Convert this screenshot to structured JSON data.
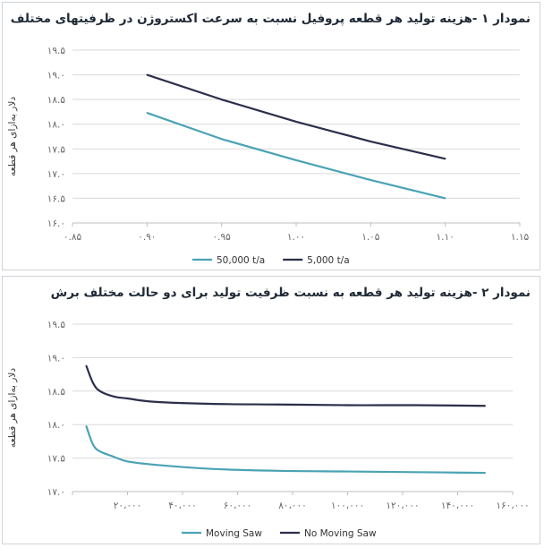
{
  "charts": [
    {
      "title": "نمودار ۱ -هزینه تولید هر قطعه پروفیل نسبت به سرعت اکستروژن در ظرفیتهای مختلف",
      "ylabel": "دلار به‌ازای هر قطعه"
    },
    {
      "title": "نمودار ۲ -هزینه تولید هر قطعه به نسبت ظرفیت تولید برای دو حالت مختلف برش",
      "ylabel": "دلار به‌ازای هر قطعه"
    }
  ],
  "chart_data": [
    {
      "type": "line",
      "title": "نمودار ۱ -هزینه تولید هر قطعه پروفیل نسبت به سرعت اکستروژن در ظرفیتهای مختلف",
      "xlabel": "",
      "ylabel": "دلار به‌ازای هر قطعه",
      "xlim": [
        0.85,
        1.15
      ],
      "ylim": [
        16.0,
        19.5
      ],
      "x_ticks": [
        0.85,
        0.9,
        0.95,
        1.0,
        1.05,
        1.1,
        1.15
      ],
      "x_tick_labels": [
        "۰.۸۵",
        "۰.۹۰",
        "۰.۹۵",
        "۱.۰۰",
        "۱.۰۵",
        "۱.۱۰",
        "۱.۱۵"
      ],
      "y_ticks": [
        16.0,
        16.5,
        17.0,
        17.5,
        18.0,
        18.5,
        19.0,
        19.5
      ],
      "y_tick_labels": [
        "۱۶.۰",
        "۱۶.۵",
        "۱۷.۰",
        "۱۷.۵",
        "۱۸.۰",
        "۱۸.۵",
        "۱۹.۰",
        "۱۹.۵"
      ],
      "grid": true,
      "legend": "bottom",
      "series": [
        {
          "name": "50,000 t/a",
          "color": "#4aa3b5",
          "x": [
            0.9,
            0.95,
            1.0,
            1.05,
            1.1
          ],
          "y": [
            18.23,
            17.7,
            17.27,
            16.87,
            16.5
          ]
        },
        {
          "name": "5,000 t/a",
          "color": "#2b2f4a",
          "x": [
            0.9,
            0.95,
            1.0,
            1.05,
            1.1
          ],
          "y": [
            19.0,
            18.5,
            18.05,
            17.65,
            17.3
          ]
        }
      ]
    },
    {
      "type": "line",
      "title": "نمودار ۲ -هزینه تولید هر قطعه به نسبت ظرفیت تولید برای دو حالت مختلف برش",
      "xlabel": "",
      "ylabel": "دلار به‌ازای هر قطعه",
      "xlim": [
        0,
        160000
      ],
      "ylim": [
        17.0,
        19.5
      ],
      "x_ticks": [
        0,
        20000,
        40000,
        60000,
        80000,
        100000,
        120000,
        140000,
        160000
      ],
      "x_tick_labels": [
        "",
        "۲۰،۰۰۰",
        "۴۰،۰۰۰",
        "۶۰،۰۰۰",
        "۸۰،۰۰۰",
        "۱۰۰،۰۰۰",
        "۱۲۰،۰۰۰",
        "۱۴۰،۰۰۰",
        "۱۶۰،۰۰۰"
      ],
      "y_ticks": [
        17.0,
        17.5,
        18.0,
        18.5,
        19.0,
        19.5
      ],
      "y_tick_labels": [
        "۱۷.۰",
        "۱۷.۵",
        "۱۸.۰",
        "۱۸.۵",
        "۱۹.۰",
        "۱۹.۵"
      ],
      "grid": true,
      "legend": "bottom",
      "series": [
        {
          "name": "Moving Saw",
          "color": "#4aa3b5",
          "x": [
            5000,
            7500,
            10000,
            15000,
            20000,
            30000,
            50000,
            75000,
            100000,
            125000,
            150000
          ],
          "y": [
            17.98,
            17.7,
            17.6,
            17.52,
            17.45,
            17.4,
            17.34,
            17.31,
            17.3,
            17.29,
            17.28
          ]
        },
        {
          "name": "No Moving Saw",
          "color": "#2b2f4a",
          "x": [
            5000,
            7500,
            10000,
            15000,
            20000,
            30000,
            50000,
            75000,
            100000,
            125000,
            150000
          ],
          "y": [
            18.88,
            18.62,
            18.5,
            18.42,
            18.39,
            18.34,
            18.31,
            18.3,
            18.29,
            18.29,
            18.28
          ]
        }
      ]
    }
  ]
}
